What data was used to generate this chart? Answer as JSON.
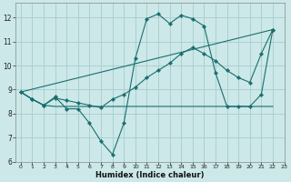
{
  "xlabel": "Humidex (Indice chaleur)",
  "xlim": [
    -0.5,
    23
  ],
  "ylim": [
    6,
    12.6
  ],
  "yticks": [
    6,
    7,
    8,
    9,
    10,
    11,
    12
  ],
  "xticks": [
    0,
    1,
    2,
    3,
    4,
    5,
    6,
    7,
    8,
    9,
    10,
    11,
    12,
    13,
    14,
    15,
    16,
    17,
    18,
    19,
    20,
    21,
    22,
    23
  ],
  "bg_color": "#cce8e8",
  "grid_color": "#a8cccc",
  "line_color": "#1a6e6e",
  "lines": [
    {
      "x": [
        0,
        1,
        2,
        3,
        4,
        5,
        6,
        7,
        8,
        9,
        10,
        11,
        12,
        13,
        14,
        15,
        16,
        17,
        18,
        19,
        20,
        21,
        22
      ],
      "y": [
        8.9,
        8.6,
        8.35,
        8.7,
        8.2,
        8.2,
        7.6,
        6.85,
        6.3,
        7.6,
        10.3,
        11.95,
        12.15,
        11.75,
        12.1,
        11.95,
        11.65,
        9.7,
        8.3,
        8.3,
        8.3,
        8.8,
        11.5
      ],
      "markers": true
    },
    {
      "x": [
        0,
        22
      ],
      "y": [
        8.9,
        11.5
      ],
      "markers": false
    },
    {
      "x": [
        0,
        1,
        2,
        3,
        4,
        5,
        6,
        7,
        8,
        9,
        10,
        11,
        12,
        13,
        14,
        15,
        16,
        17,
        18,
        19,
        20,
        21,
        22
      ],
      "y": [
        8.9,
        8.6,
        8.35,
        8.65,
        8.55,
        8.45,
        8.35,
        8.25,
        8.6,
        8.8,
        9.1,
        9.5,
        9.8,
        10.1,
        10.5,
        10.75,
        10.5,
        10.2,
        9.8,
        9.5,
        9.3,
        10.5,
        11.5
      ],
      "markers": true
    },
    {
      "x": [
        0,
        1,
        2,
        3,
        20,
        22
      ],
      "y": [
        8.9,
        8.6,
        8.35,
        8.3,
        8.3,
        8.3
      ],
      "markers": false
    }
  ]
}
